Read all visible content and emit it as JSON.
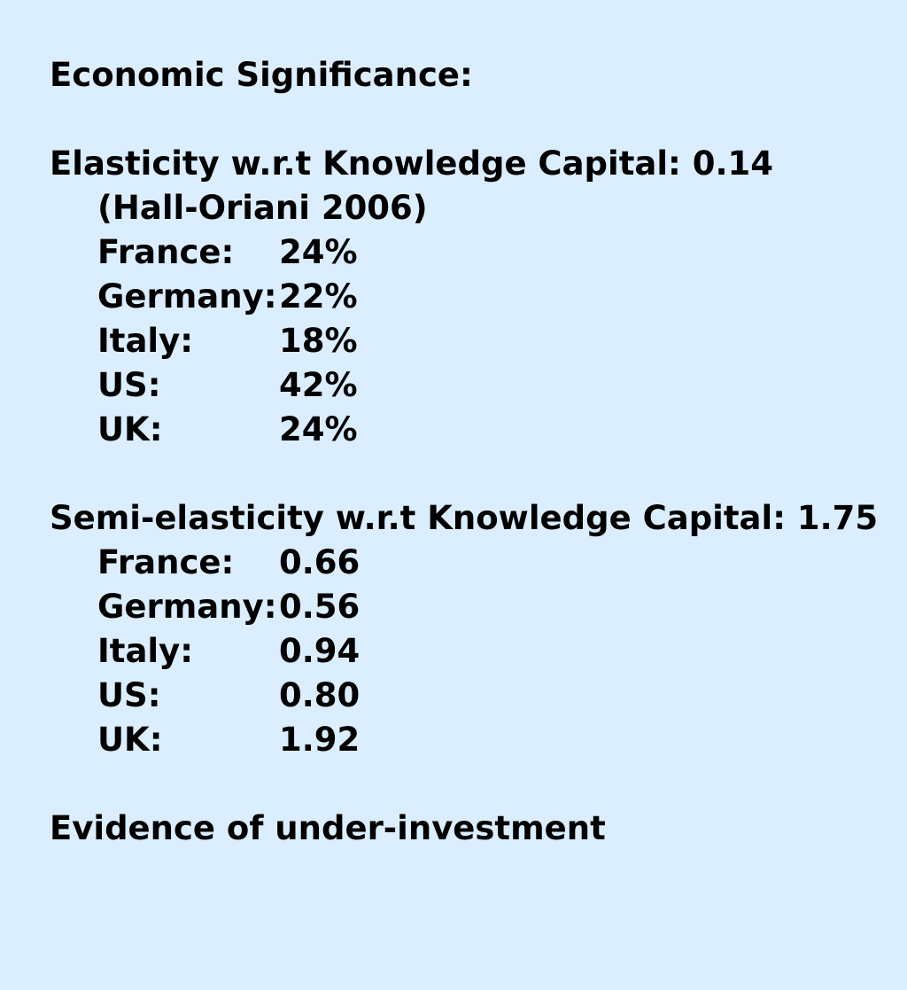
{
  "heading": "Economic Significance:",
  "elasticity": {
    "line": "Elasticity w.r.t Knowledge Capital: 0.14",
    "source": "(Hall-Oriani 2006)",
    "rows": [
      {
        "country": "France:",
        "value": "24%"
      },
      {
        "country": "Germany:",
        "value": "22%"
      },
      {
        "country": "Italy:",
        "value": "18%"
      },
      {
        "country": "US:",
        "value": "42%"
      },
      {
        "country": "UK:",
        "value": "24%"
      }
    ]
  },
  "semi_elasticity": {
    "line": "Semi-elasticity w.r.t Knowledge Capital: 1.75",
    "rows": [
      {
        "country": "France:",
        "value": "0.66"
      },
      {
        "country": "Germany:",
        "value": "0.56"
      },
      {
        "country": "Italy:",
        "value": "0.94"
      },
      {
        "country": "US:",
        "value": "0.80"
      },
      {
        "country": "UK:",
        "value": "1.92"
      }
    ]
  },
  "conclusion": "Evidence of under-investment",
  "colors": {
    "background": "#dbeeff",
    "text": "#000000"
  }
}
